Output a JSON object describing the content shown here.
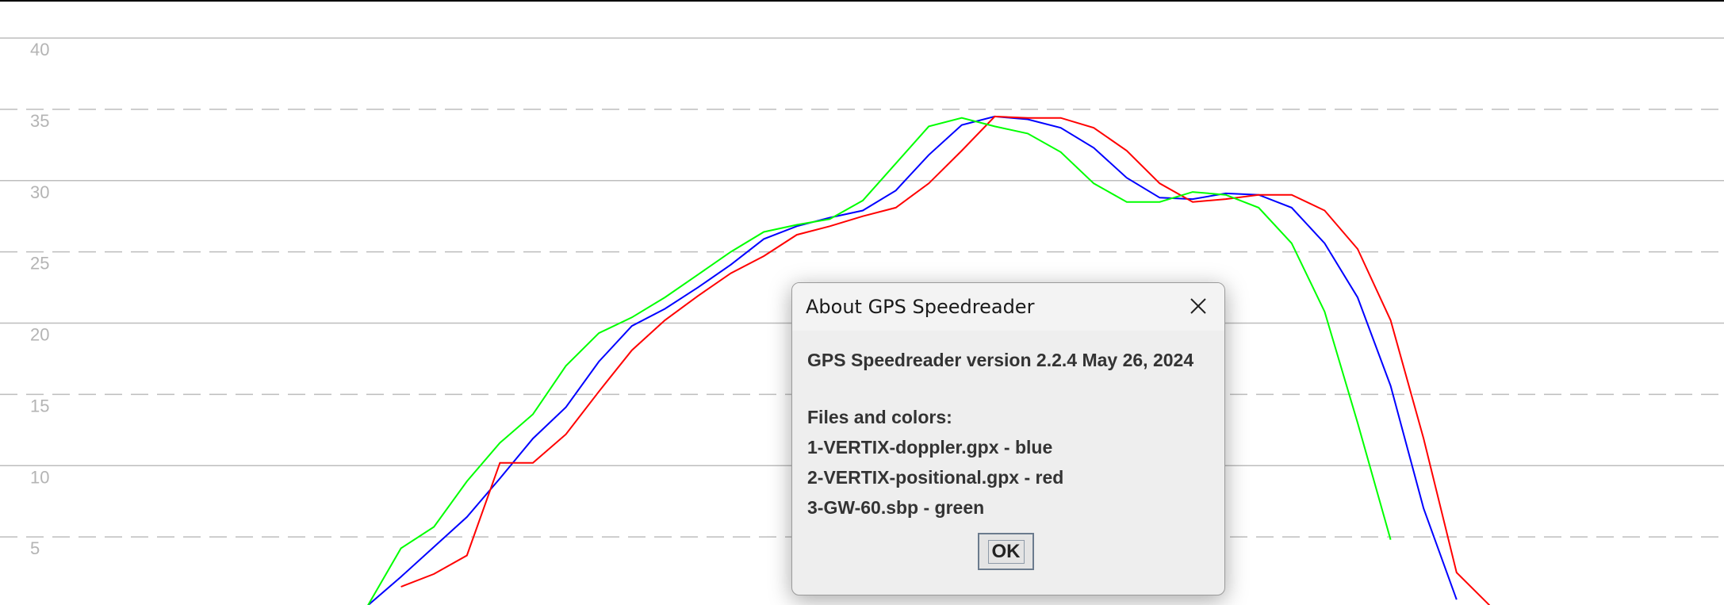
{
  "chart_data": {
    "type": "line",
    "ylim": [
      0,
      40
    ],
    "yticks": [
      5,
      10,
      15,
      20,
      25,
      30,
      35,
      40
    ],
    "series": [
      {
        "name": "1-VERTIX-doppler.gpx",
        "color": "#0000ff",
        "values": [
          0.2,
          2.2,
          4.3,
          6.4,
          9.1,
          11.9,
          14.1,
          17.3,
          19.8,
          21.0,
          22.5,
          24.1,
          25.9,
          26.8,
          27.4,
          27.9,
          29.3,
          31.8,
          33.9,
          34.5,
          34.3,
          33.7,
          32.3,
          30.2,
          28.8,
          28.7,
          29.1,
          29.0,
          28.1,
          25.6,
          21.8,
          15.6,
          7.0,
          0.6,
          null
        ]
      },
      {
        "name": "2-VERTIX-positional.gpx",
        "color": "#ff0000",
        "values": [
          null,
          1.5,
          2.4,
          3.7,
          10.2,
          10.2,
          12.2,
          15.2,
          18.1,
          20.2,
          21.9,
          23.5,
          24.7,
          26.2,
          26.8,
          27.5,
          28.1,
          29.8,
          32.1,
          34.5,
          34.4,
          34.4,
          33.7,
          32.1,
          29.8,
          28.5,
          28.7,
          29.0,
          29.0,
          27.9,
          25.2,
          20.2,
          11.9,
          2.5,
          0.2
        ]
      },
      {
        "name": "3-GW-60.sbp",
        "color": "#00ff00",
        "values": [
          0.2,
          4.2,
          5.7,
          8.9,
          11.6,
          13.6,
          17.0,
          19.3,
          20.4,
          21.8,
          23.4,
          25.0,
          26.4,
          26.9,
          27.3,
          28.6,
          31.2,
          33.8,
          34.4,
          33.8,
          33.3,
          32.0,
          29.8,
          28.5,
          28.5,
          29.2,
          29.0,
          28.1,
          25.6,
          20.8,
          13.0,
          4.8,
          null,
          null,
          null
        ]
      }
    ]
  },
  "dialog": {
    "title": "About GPS Speedreader",
    "version": "GPS Speedreader version 2.2.4 May 26, 2024",
    "files_heading": "Files and colors:",
    "files": [
      "1-VERTIX-doppler.gpx - blue",
      "2-VERTIX-positional.gpx - red",
      "3-GW-60.sbp - green"
    ],
    "button": "OK"
  }
}
